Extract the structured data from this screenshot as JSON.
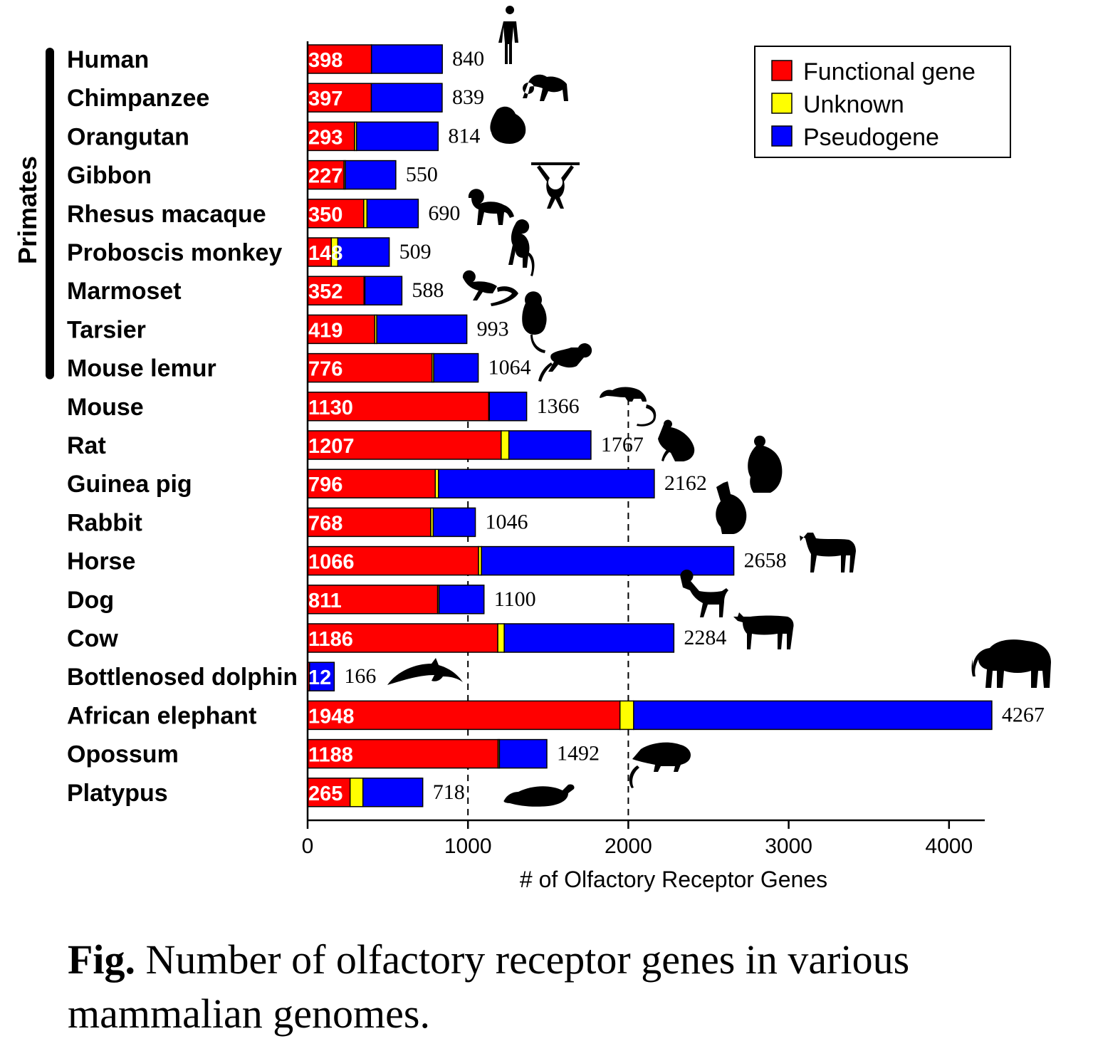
{
  "chart_data": {
    "type": "bar",
    "orientation": "horizontal",
    "stacked": true,
    "xlabel": "# of Olfactory Receptor Genes",
    "xlim": [
      0,
      4230
    ],
    "xticks": [
      0,
      1000,
      2000,
      3000,
      4000
    ],
    "gridlines": [
      1000,
      2000
    ],
    "legend_position": "top-right",
    "group_label": "Primates",
    "series": [
      {
        "name": "Functional gene",
        "color": "#ff0000"
      },
      {
        "name": "Unknown",
        "color": "#ffff00"
      },
      {
        "name": "Pseudogene",
        "color": "#0000ff"
      }
    ],
    "rows": [
      {
        "species": "Human",
        "functional": 398,
        "unknown": 0,
        "total": 840,
        "primate": true,
        "silhouette": "human-icon"
      },
      {
        "species": "Chimpanzee",
        "functional": 397,
        "unknown": 0,
        "total": 839,
        "primate": true,
        "silhouette": "chimpanzee-icon"
      },
      {
        "species": "Orangutan",
        "functional": 293,
        "unknown": 12,
        "total": 814,
        "primate": true,
        "silhouette": "orangutan-icon"
      },
      {
        "species": "Gibbon",
        "functional": 227,
        "unknown": 8,
        "total": 550,
        "primate": true,
        "silhouette": "gibbon-icon"
      },
      {
        "species": "Rhesus macaque",
        "functional": 350,
        "unknown": 20,
        "total": 690,
        "primate": true,
        "silhouette": "macaque-icon"
      },
      {
        "species": "Proboscis monkey",
        "functional": 148,
        "unknown": 40,
        "total": 509,
        "primate": true,
        "silhouette": "proboscis-monkey-icon"
      },
      {
        "species": "Marmoset",
        "functional": 352,
        "unknown": 5,
        "total": 588,
        "primate": true,
        "silhouette": "marmoset-icon"
      },
      {
        "species": "Tarsier",
        "functional": 419,
        "unknown": 12,
        "total": 993,
        "primate": true,
        "silhouette": "tarsier-icon"
      },
      {
        "species": "Mouse lemur",
        "functional": 776,
        "unknown": 10,
        "total": 1064,
        "primate": true,
        "silhouette": "mouse-lemur-icon"
      },
      {
        "species": "Mouse",
        "functional": 1130,
        "unknown": 3,
        "total": 1366,
        "primate": false,
        "silhouette": "mouse-icon"
      },
      {
        "species": "Rat",
        "functional": 1207,
        "unknown": 48,
        "total": 1767,
        "primate": false,
        "silhouette": "rat-icon"
      },
      {
        "species": "Guinea pig",
        "functional": 796,
        "unknown": 20,
        "total": 2162,
        "primate": false,
        "silhouette": "guinea-pig-icon"
      },
      {
        "species": "Rabbit",
        "functional": 768,
        "unknown": 15,
        "total": 1046,
        "primate": false,
        "silhouette": "rabbit-icon"
      },
      {
        "species": "Horse",
        "functional": 1066,
        "unknown": 18,
        "total": 2658,
        "primate": false,
        "silhouette": "horse-icon"
      },
      {
        "species": "Dog",
        "functional": 811,
        "unknown": 8,
        "total": 1100,
        "primate": false,
        "silhouette": "dog-icon"
      },
      {
        "species": "Cow",
        "functional": 1186,
        "unknown": 40,
        "total": 2284,
        "primate": false,
        "silhouette": "cow-icon"
      },
      {
        "species": "Bottlenosed dolphin",
        "functional": 12,
        "unknown": 0,
        "total": 166,
        "primate": false,
        "silhouette": "dolphin-icon"
      },
      {
        "species": "African elephant",
        "functional": 1948,
        "unknown": 85,
        "total": 4267,
        "primate": false,
        "silhouette": "elephant-icon"
      },
      {
        "species": "Opossum",
        "functional": 1188,
        "unknown": 8,
        "total": 1492,
        "primate": false,
        "silhouette": "opossum-icon"
      },
      {
        "species": "Platypus",
        "functional": 265,
        "unknown": 80,
        "total": 718,
        "primate": false,
        "silhouette": "platypus-icon"
      }
    ]
  },
  "caption": {
    "prefix": "Fig.",
    "text": " Number of olfactory receptor genes in various mammalian genomes."
  }
}
